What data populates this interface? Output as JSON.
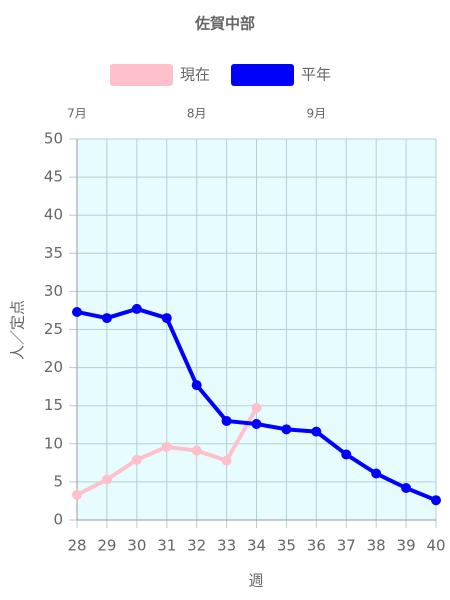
{
  "chart_data": {
    "type": "line",
    "title": "佐賀中部",
    "x_label": "週",
    "y_label": "人／定点",
    "x": [
      28,
      29,
      30,
      31,
      32,
      33,
      34,
      35,
      36,
      37,
      38,
      39,
      40
    ],
    "series": [
      {
        "name": "現在",
        "color": "#ffc0cb",
        "values": [
          3.3,
          5.3,
          7.9,
          9.6,
          9.1,
          7.8,
          14.7,
          null,
          null,
          null,
          null,
          null,
          null
        ]
      },
      {
        "name": "平年",
        "color": "#0000ff",
        "values": [
          27.3,
          26.5,
          27.7,
          26.5,
          17.7,
          13.0,
          12.6,
          11.9,
          11.6,
          8.6,
          6.1,
          4.2,
          2.6
        ]
      }
    ],
    "xlim": [
      28,
      40
    ],
    "xticks": [
      28,
      29,
      30,
      31,
      32,
      33,
      34,
      35,
      36,
      37,
      38,
      39,
      40
    ],
    "ylim": [
      0,
      50
    ],
    "yticks": [
      0,
      5,
      10,
      15,
      20,
      25,
      30,
      35,
      40,
      45,
      50
    ],
    "x2ticks": [
      {
        "value": 28,
        "label": "7月"
      },
      {
        "value": 32,
        "label": "8月"
      },
      {
        "value": 36,
        "label": "9月"
      }
    ],
    "grid": true,
    "legend": "top",
    "plot_background": "#e6fcff"
  }
}
